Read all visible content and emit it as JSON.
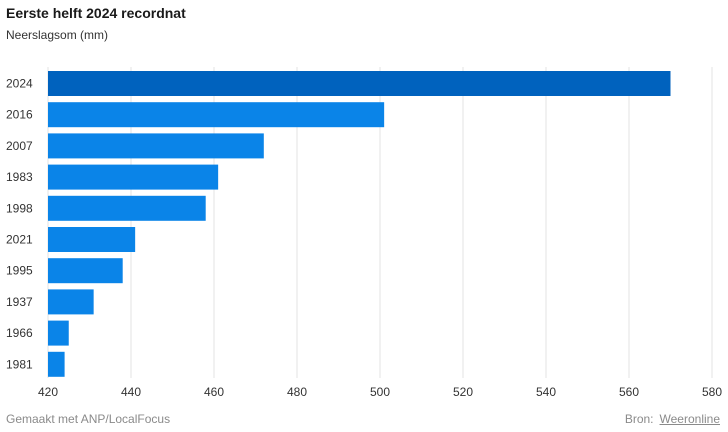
{
  "title": "Eerste helft 2024 recordnat",
  "subtitle": "Neerslagsom (mm)",
  "footer": {
    "made_with": "Gemaakt met ANP/LocalFocus",
    "source_label": "Bron:",
    "source_link": "Weeronline"
  },
  "colors": {
    "highlight": "#0062BE",
    "bar": "#0A84E8",
    "grid": "#E3E3E3"
  },
  "chart_data": {
    "type": "bar",
    "orientation": "horizontal",
    "title": "Eerste helft 2024 recordnat",
    "subtitle": "Neerslagsom (mm)",
    "categories": [
      "2024",
      "2016",
      "2007",
      "1983",
      "1998",
      "2021",
      "1995",
      "1937",
      "1966",
      "1981"
    ],
    "values": [
      570,
      501,
      472,
      461,
      458,
      441,
      438,
      431,
      425,
      424
    ],
    "highlight_category": "2024",
    "xlim": [
      420,
      580
    ],
    "xticks": [
      "420",
      "440",
      "460",
      "480",
      "500",
      "520",
      "540",
      "560",
      "580"
    ],
    "grid": "vertical"
  }
}
